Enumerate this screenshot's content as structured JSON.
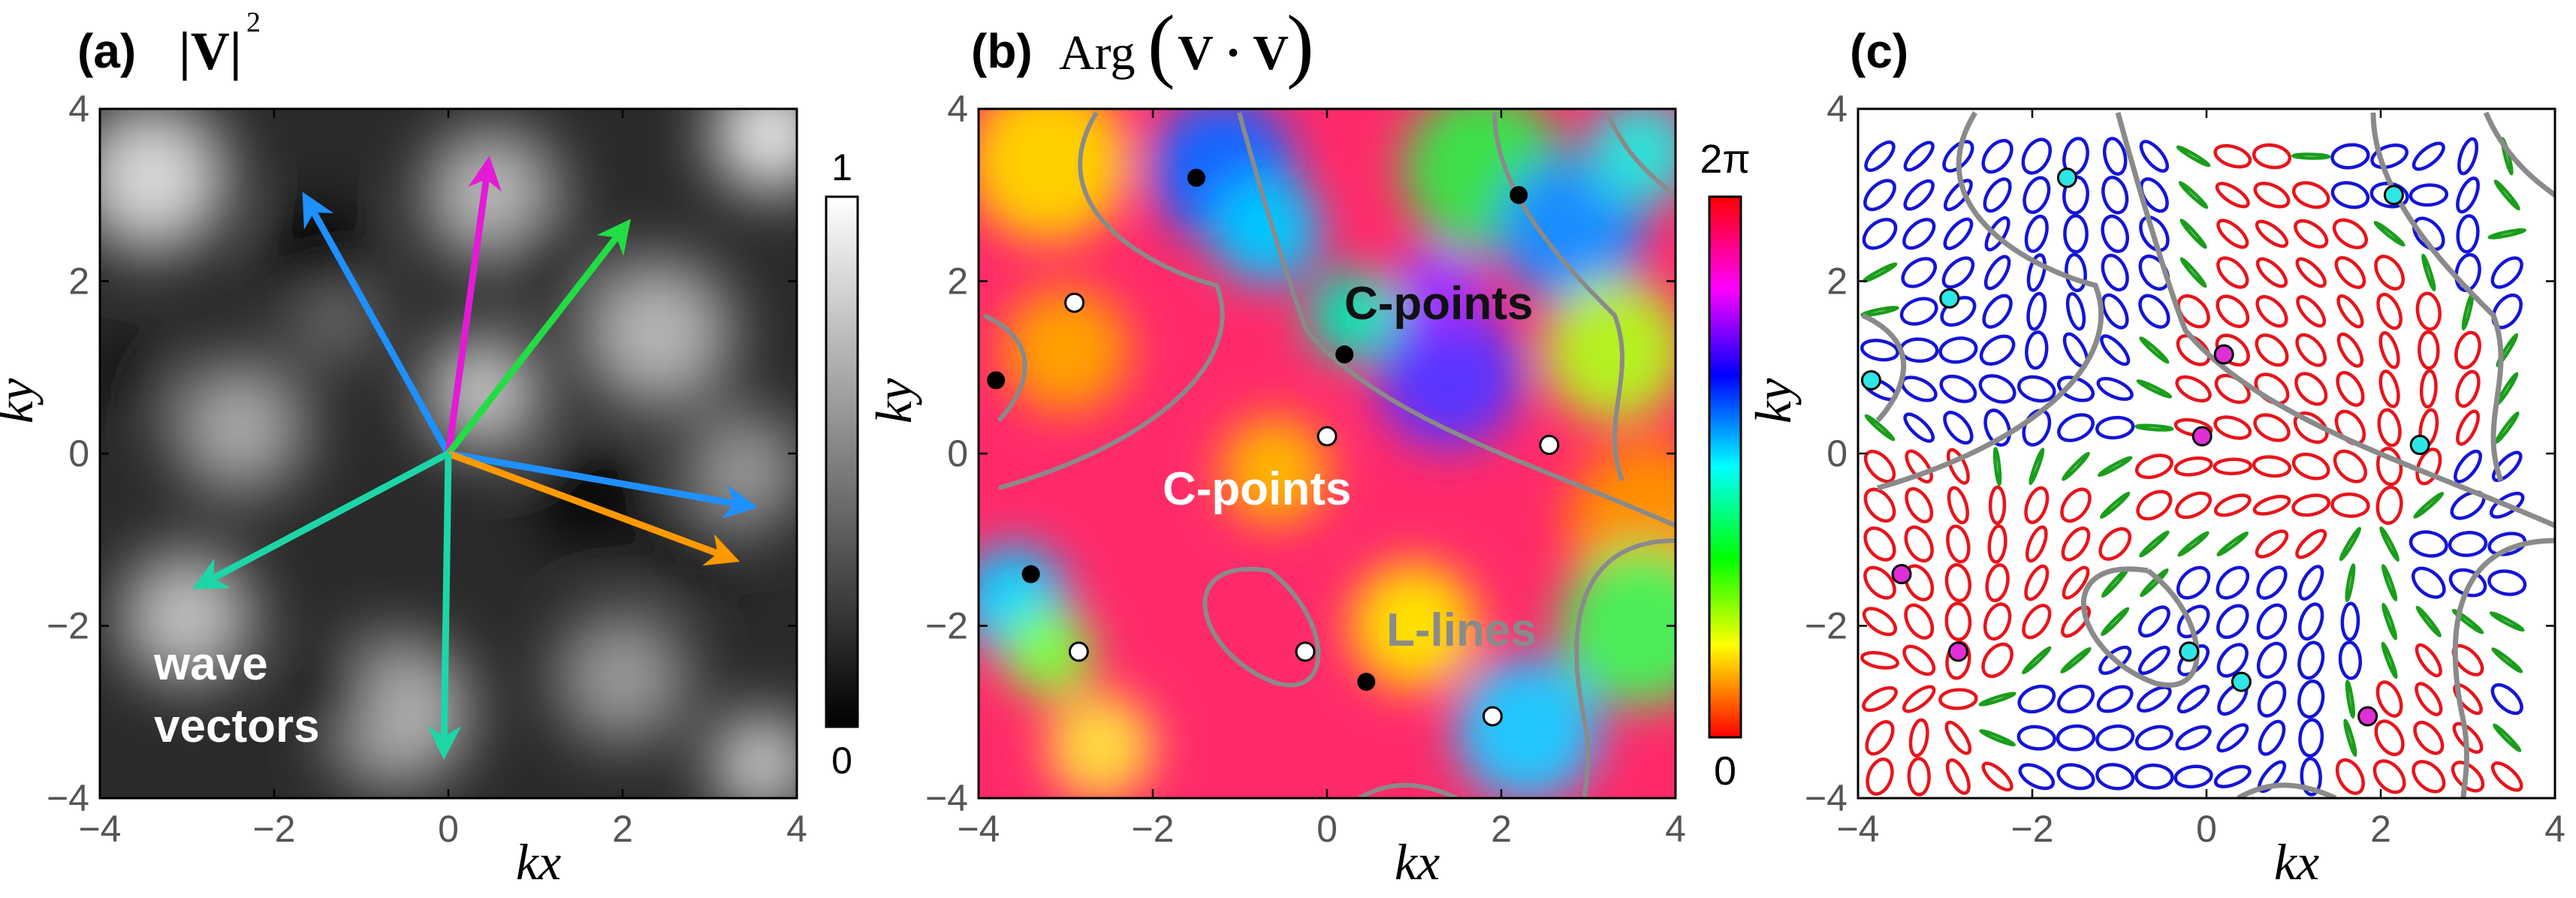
{
  "panels": {
    "a": {
      "letter": "(a)",
      "title_math": "|V|",
      "title_sup": "2",
      "colorbar_max": "1",
      "colorbar_min": "0",
      "annotation_line1": "wave",
      "annotation_line2": "vectors"
    },
    "b": {
      "letter": "(b)",
      "title_prefix": "Arg",
      "title_inner": "V · V",
      "colorbar_max": "2π",
      "colorbar_min": "0",
      "annotation_cpoints_dark": "C-points",
      "annotation_cpoints_light": "C-points",
      "annotation_llines": "L-lines"
    },
    "c": {
      "letter": "(c)"
    }
  },
  "chart_data": [
    {
      "panel": "a",
      "type": "heatmap",
      "xlabel": "kx",
      "ylabel": "ky",
      "xlim": [
        -4,
        4
      ],
      "ylim": [
        -4,
        4
      ],
      "xticks": [
        -4,
        -2,
        0,
        2,
        4
      ],
      "yticks": [
        -4,
        -2,
        0,
        2,
        4
      ],
      "colorbar": "grayscale",
      "colorbar_range": [
        0,
        1
      ],
      "wave_vectors": [
        {
          "color": "#1e90ff",
          "dx": -1.6,
          "dy": 2.9
        },
        {
          "color": "#e41ad6",
          "dx": 0.45,
          "dy": 3.3
        },
        {
          "color": "#22dd44",
          "dx": 2.0,
          "dy": 2.6
        },
        {
          "color": "#1e90ff",
          "dx": 3.4,
          "dy": -0.6
        },
        {
          "color": "#ff9900",
          "dx": 3.2,
          "dy": -1.2
        },
        {
          "color": "#1cd6a8",
          "dx": -2.8,
          "dy": -1.5
        },
        {
          "color": "#1cd6a8",
          "dx": -0.05,
          "dy": -3.4
        }
      ]
    },
    {
      "panel": "b",
      "type": "heatmap",
      "xlabel": "kx",
      "ylabel": "ky",
      "xlim": [
        -4,
        4
      ],
      "ylim": [
        -4,
        4
      ],
      "xticks": [
        -4,
        -2,
        0,
        2,
        4
      ],
      "yticks": [
        -4,
        -2,
        0,
        2,
        4
      ],
      "colorbar": "hue",
      "colorbar_range": [
        "0",
        "2π"
      ],
      "c_points_black": [
        [
          -1.5,
          3.2
        ],
        [
          2.2,
          3.0
        ],
        [
          -3.8,
          0.85
        ],
        [
          0.2,
          1.15
        ],
        [
          -3.4,
          -1.4
        ],
        [
          0.45,
          -2.65
        ]
      ],
      "c_points_white": [
        [
          -2.9,
          1.75
        ],
        [
          0.0,
          0.2
        ],
        [
          2.55,
          0.1
        ],
        [
          -2.85,
          -2.3
        ],
        [
          -0.25,
          -2.3
        ],
        [
          1.9,
          -3.05
        ]
      ]
    },
    {
      "panel": "c",
      "type": "scatter",
      "xlabel": "kx",
      "ylabel": "ky",
      "xlim": [
        -4,
        4
      ],
      "ylim": [
        -4,
        4
      ],
      "xticks": [
        -4,
        -2,
        0,
        2,
        4
      ],
      "yticks": [
        -4,
        -2,
        0,
        2,
        4
      ],
      "ellipse_colors": {
        "left-handed": "#e8141b",
        "right-handed": "#1414d8",
        "linear": "#1a9e1a"
      },
      "c_points_cyan": [
        [
          -1.6,
          3.2
        ],
        [
          2.15,
          3.0
        ],
        [
          -2.95,
          1.8
        ],
        [
          -3.85,
          0.85
        ],
        [
          2.45,
          0.1
        ],
        [
          -0.2,
          -2.3
        ],
        [
          0.4,
          -2.65
        ]
      ],
      "c_points_magenta": [
        [
          0.2,
          1.15
        ],
        [
          -0.05,
          0.2
        ],
        [
          -3.5,
          -1.4
        ],
        [
          -2.85,
          -2.3
        ],
        [
          1.85,
          -3.05
        ]
      ]
    }
  ]
}
